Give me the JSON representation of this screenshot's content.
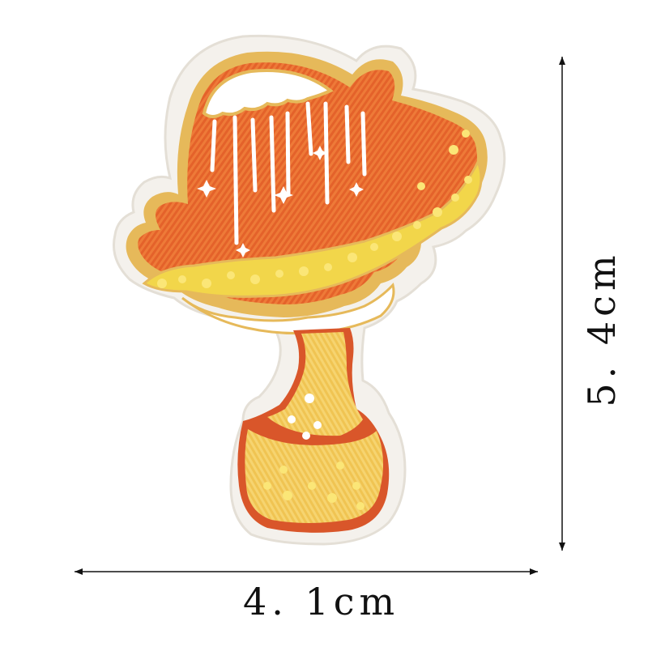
{
  "photo": {
    "subject": "embroidered-mushroom-patch-icon",
    "colors": {
      "backing": "#f4f1ec",
      "border": "#e6b95a",
      "cap_orange": "#e4622a",
      "cap_light": "#f08a3e",
      "drip_white": "#ffffff",
      "sequins": "#f2d64a",
      "stem": "#f2c25a",
      "stem_outline": "#d9562a"
    }
  },
  "dimensions": {
    "width_label": "4. 1cm",
    "height_label": "5. 4cm",
    "line_color": "#111111"
  }
}
